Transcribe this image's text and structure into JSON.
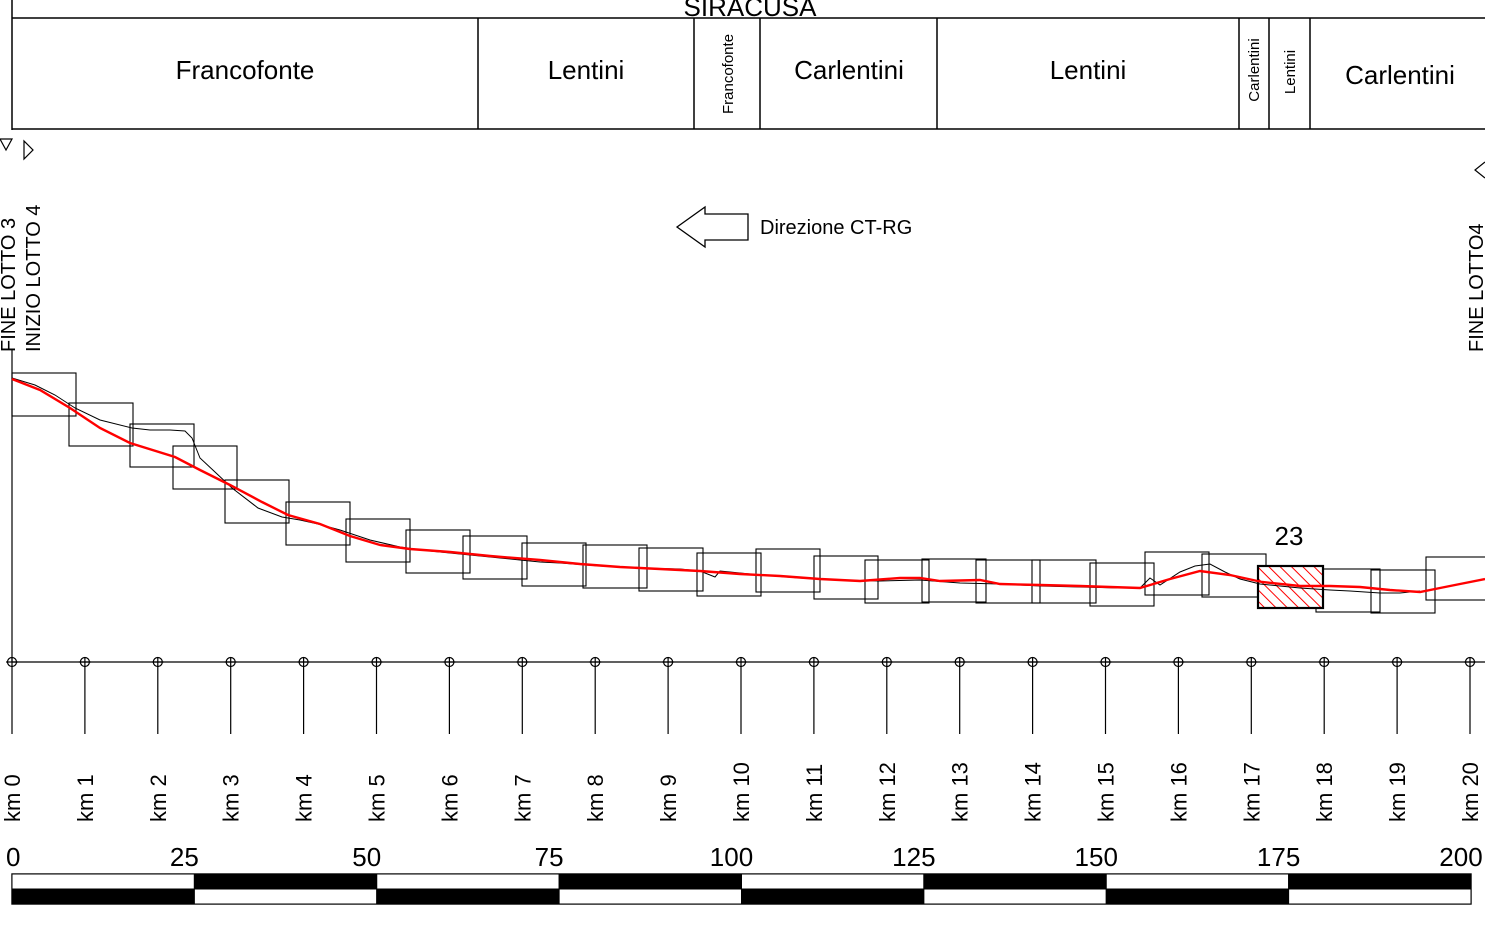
{
  "header": {
    "province": "SIRACUSA"
  },
  "municipalities": [
    {
      "name": "Francofonte",
      "orientation": "horizontal"
    },
    {
      "name": "Lentini",
      "orientation": "horizontal"
    },
    {
      "name": "Francofonte",
      "orientation": "vertical"
    },
    {
      "name": "Carlentini",
      "orientation": "horizontal"
    },
    {
      "name": "Lentini",
      "orientation": "horizontal"
    },
    {
      "name": "Carlentini",
      "orientation": "vertical"
    },
    {
      "name": "Lentini",
      "orientation": "vertical"
    },
    {
      "name": "Carlentini",
      "orientation": "horizontal"
    }
  ],
  "lot_markers": {
    "fine_lotto_3": "FINE LOTTO 3",
    "inizio_lotto_4": "INIZIO LOTTO 4",
    "fine_lotto_4": "FINE LOTTO4"
  },
  "direction": {
    "label": "Direzione CT-RG",
    "arrow": "left"
  },
  "highlight": {
    "tile_label": "23",
    "color": "#ff0000"
  },
  "route": {
    "color": "#ff0000",
    "ground_color": "#000000"
  },
  "km_labels": [
    "km 0",
    "km 1",
    "km 2",
    "km 3",
    "km 4",
    "km 5",
    "km 6",
    "km 7",
    "km 8",
    "km 9",
    "km 10",
    "km 11",
    "km 12",
    "km 13",
    "km 14",
    "km 15",
    "km 16",
    "km 17",
    "km 18",
    "km 19",
    "km 20"
  ],
  "scale_bar": {
    "labels": [
      "0",
      "25",
      "50",
      "75",
      "100",
      "125",
      "150",
      "175",
      "200"
    ]
  }
}
